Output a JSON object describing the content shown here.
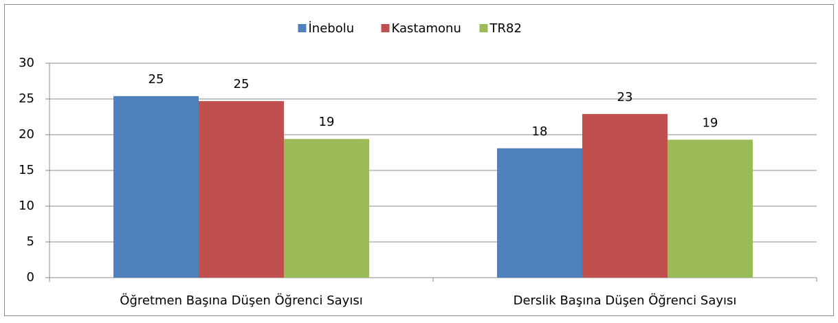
{
  "chart_data": {
    "type": "bar",
    "categories": [
      "Öğretmen Başına Düşen Öğrenci Sayısı",
      "Derslik Başına Düşen Öğrenci Sayısı"
    ],
    "series": [
      {
        "name": "İnebolu",
        "color": "#4f81bd",
        "values": [
          25.4,
          18.1
        ],
        "value_labels": [
          "25",
          "18"
        ]
      },
      {
        "name": "Kastamonu",
        "color": "#c0504d",
        "values": [
          24.7,
          22.9
        ],
        "value_labels": [
          "25",
          "23"
        ]
      },
      {
        "name": "TR82",
        "color": "#9bbb59",
        "values": [
          19.4,
          19.3
        ],
        "value_labels": [
          "19",
          "19"
        ]
      }
    ],
    "ylim": [
      0,
      30
    ],
    "yticks": [
      0,
      5,
      10,
      15,
      20,
      25,
      30
    ],
    "grid": true,
    "legend": "top"
  }
}
